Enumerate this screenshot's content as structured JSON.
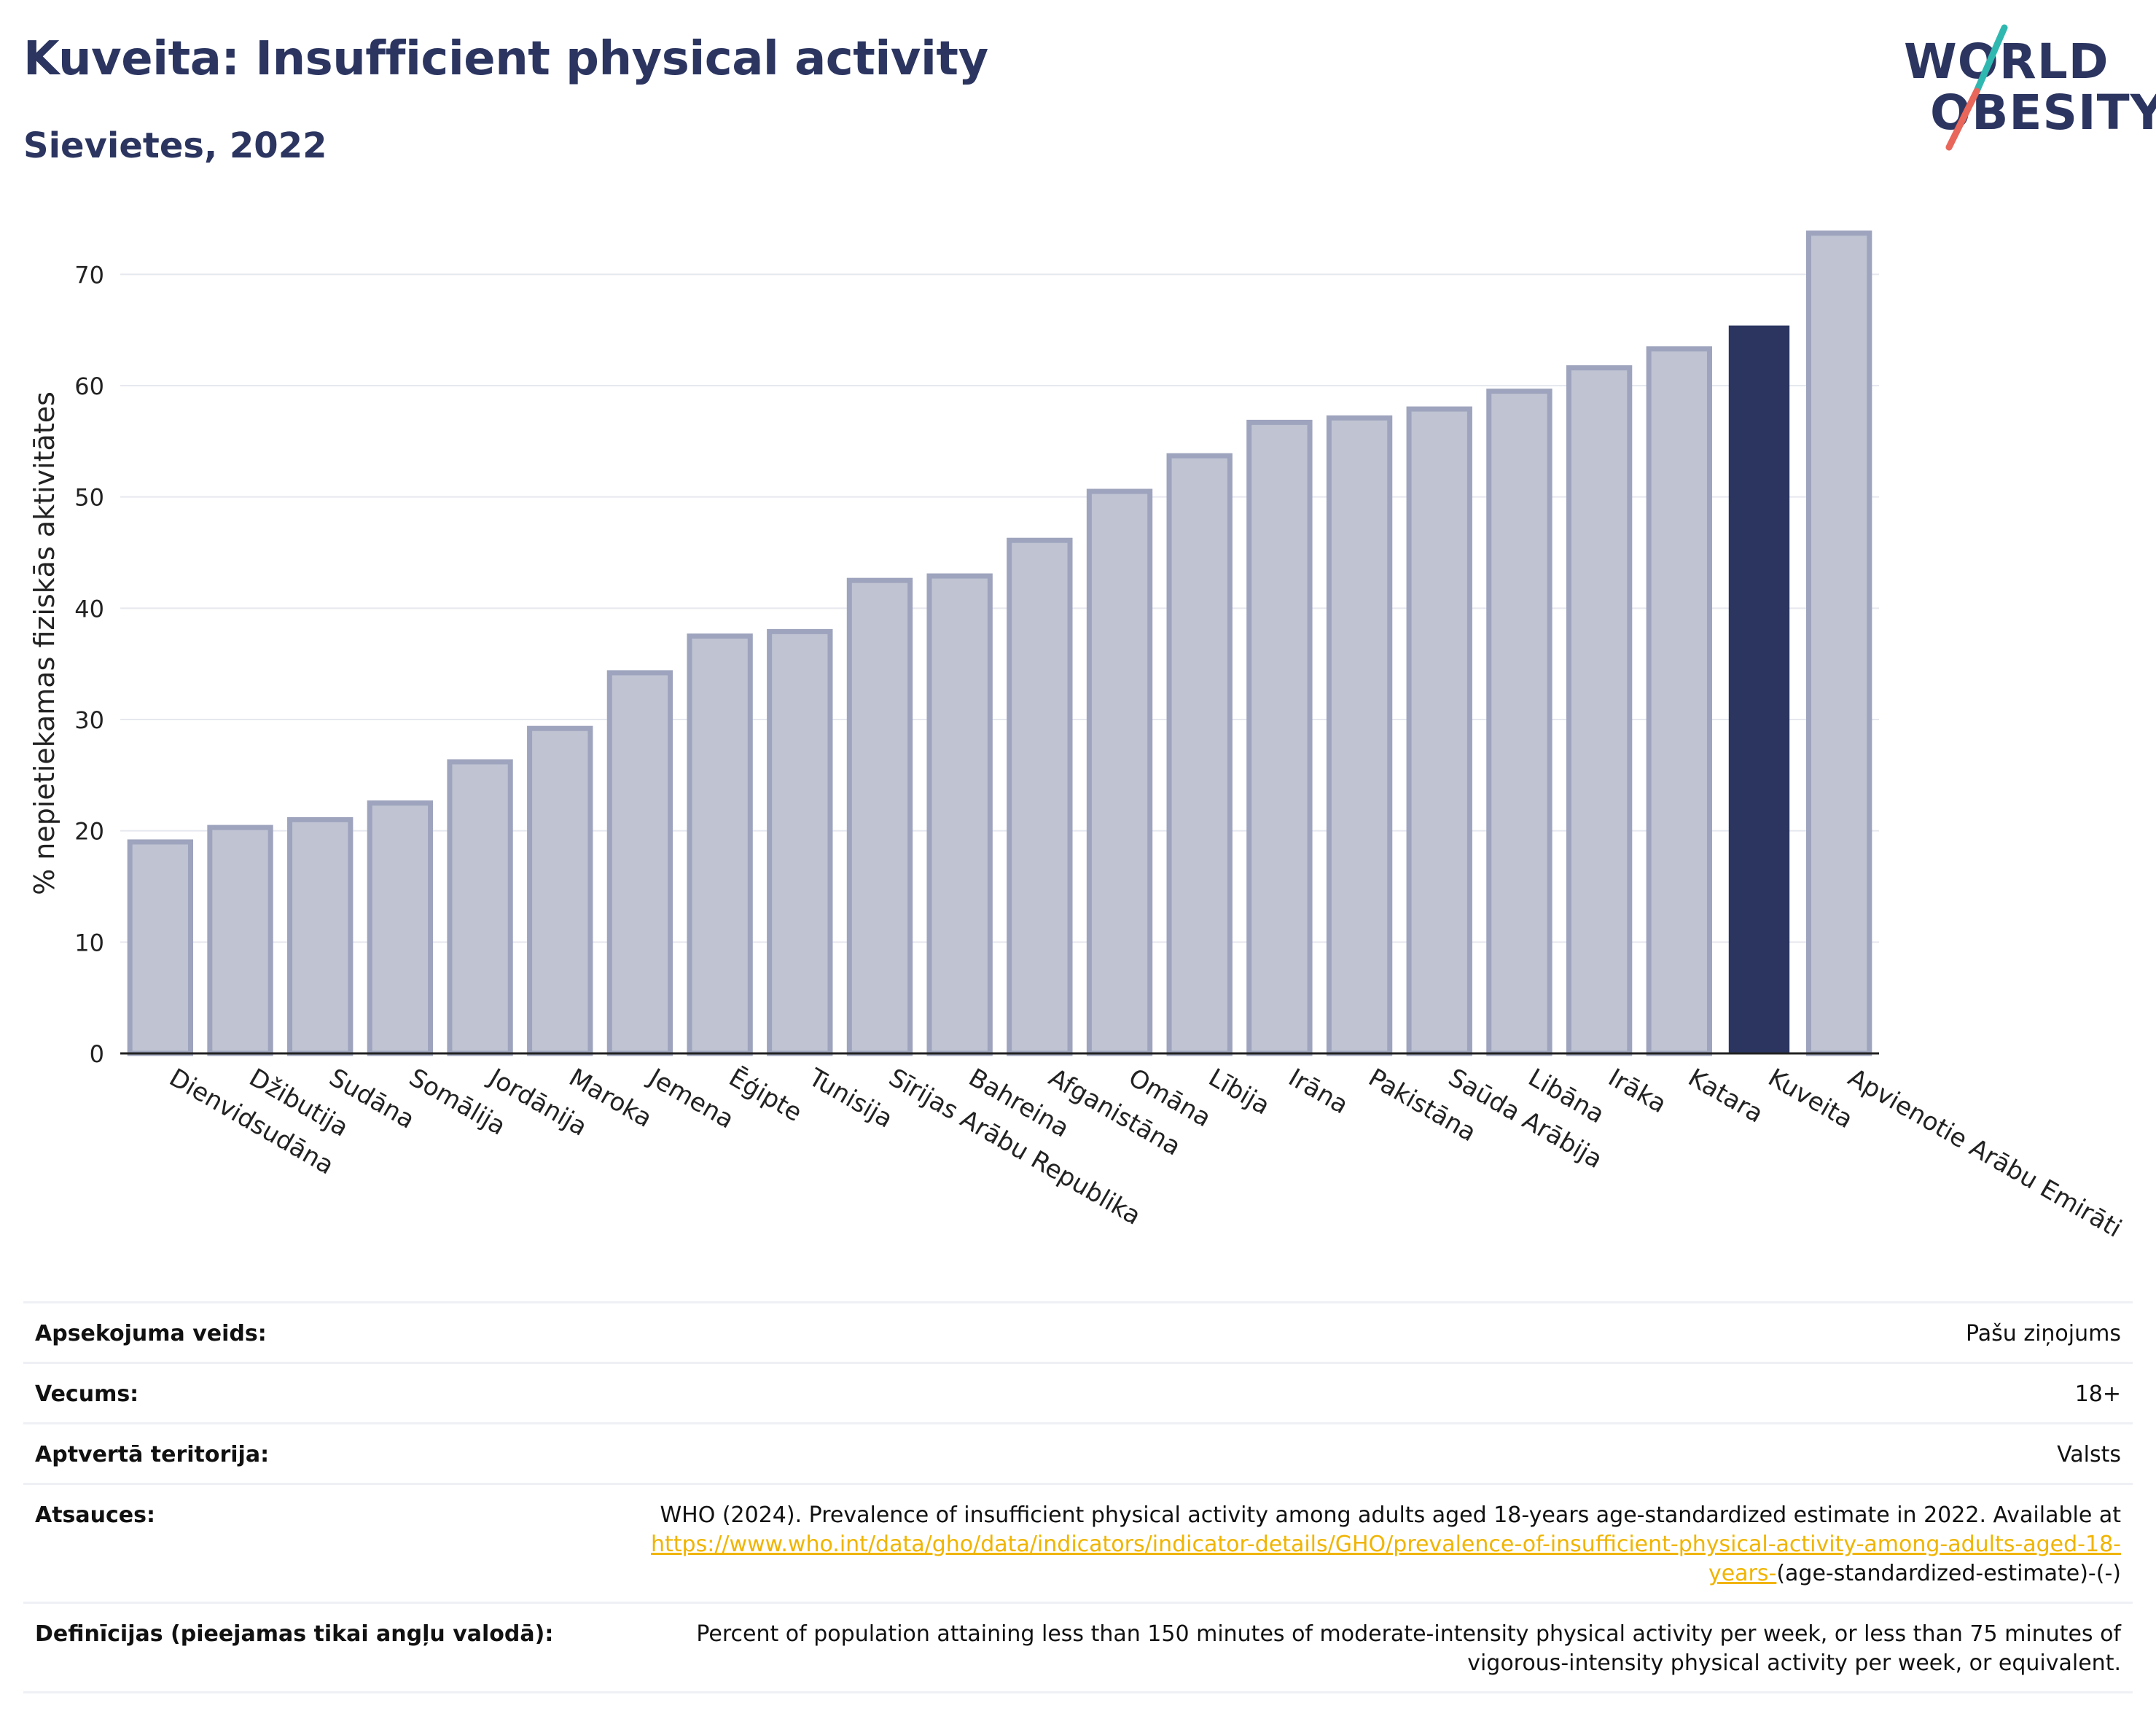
{
  "title": "Kuveita: Insufficient physical activity",
  "subtitle": "Sievietes, 2022",
  "logo": {
    "line1": "WORLD",
    "line2": "OBESITY"
  },
  "colors": {
    "bar": "#2b3560",
    "bar_muted": "#bfc3d2",
    "bar_muted_stroke": "#9ea4bd",
    "grid": "#e6e8ef",
    "link": "#f0b400"
  },
  "chart_data": {
    "type": "bar",
    "title": "Kuveita: Insufficient physical activity",
    "subtitle": "Sievietes, 2022",
    "ylabel": "% nepietiekamas fiziskās aktivitātes",
    "xlabel": "",
    "ylim": [
      0,
      75
    ],
    "yticks": [
      0,
      10,
      20,
      30,
      40,
      50,
      60,
      70
    ],
    "grid": true,
    "highlight": "Kuveita",
    "categories": [
      "Dienvidsudāna",
      "Džibutija",
      "Sudāna",
      "Somālija",
      "Jordānija",
      "Maroka",
      "Jemena",
      "Ēģipte",
      "Tunisija",
      "Sīrijas Arābu Republika",
      "Bahreina",
      "Afganistāna",
      "Omāna",
      "Lībija",
      "Irāna",
      "Pakistāna",
      "Saūda Arābija",
      "Libāna",
      "Irāka",
      "Katara",
      "Kuveita",
      "Apvienotie Arābu Emirāti"
    ],
    "values": [
      19.0,
      20.3,
      21.0,
      22.5,
      26.2,
      29.2,
      34.2,
      37.5,
      37.9,
      42.5,
      42.9,
      46.1,
      50.5,
      53.7,
      56.7,
      57.1,
      57.9,
      59.5,
      61.6,
      63.3,
      65.4,
      73.7
    ]
  },
  "info": [
    {
      "label": "Apsekojuma veids:",
      "value": "Pašu ziņojums"
    },
    {
      "label": "Vecums:",
      "value": "18+"
    },
    {
      "label": "Aptvertā teritorija:",
      "value": "Valsts"
    },
    {
      "label": "Atsauces:",
      "value": "WHO (2024). Prevalence of insufficient physical activity among adults aged 18-years age-standardized estimate in 2022. Available at",
      "link": "https://www.who.int/data/gho/data/indicators/indicator-details/GHO/prevalence-of-insufficient-physical-activity-among-adults-aged-18-years-",
      "value_after": "(age-standardized-estimate)-(-)"
    },
    {
      "label": "Definīcijas (pieejamas tikai angļu valodā):",
      "value": "Percent of population attaining less than 150 minutes of moderate-intensity physical activity per week, or less than 75 minutes of vigorous-intensity physical activity per week, or equivalent."
    }
  ]
}
